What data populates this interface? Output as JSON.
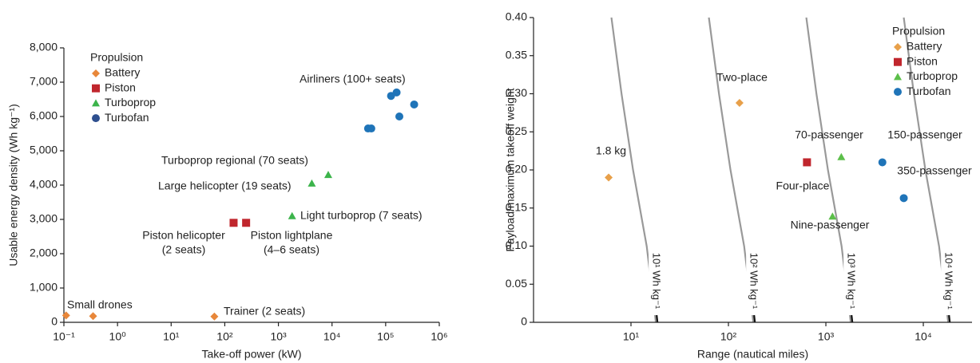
{
  "chart_data": [
    {
      "type": "scatter",
      "xscale": "log",
      "xlabel": "Take-off power (kW)",
      "ylabel": "Usable energy density (Wh kg⁻¹)",
      "xlim": [
        0.1,
        1000000
      ],
      "ylim": [
        0,
        8000
      ],
      "xticks": [
        {
          "value": 0.1,
          "label": "10⁻¹"
        },
        {
          "value": 1,
          "label": "10⁰"
        },
        {
          "value": 10,
          "label": "10¹"
        },
        {
          "value": 100,
          "label": "10²"
        },
        {
          "value": 1000,
          "label": "10³"
        },
        {
          "value": 10000,
          "label": "10⁴"
        },
        {
          "value": 100000,
          "label": "10⁵"
        },
        {
          "value": 1000000,
          "label": "10⁶"
        }
      ],
      "yticks": [
        0,
        {
          "value": 1000,
          "label": "1,000"
        },
        {
          "value": 2000,
          "label": "2,000"
        },
        {
          "value": 3000,
          "label": "3,000"
        },
        {
          "value": 4000,
          "label": "4,000"
        },
        {
          "value": 5000,
          "label": "5,000"
        },
        {
          "value": 6000,
          "label": "6,000"
        },
        {
          "value": 7000,
          "label": "7,000"
        },
        {
          "value": 8000,
          "label": "8,000"
        }
      ],
      "legend_title": "Propulsion",
      "legend": "upper left",
      "series": [
        {
          "name": "Battery",
          "color": "#e8873a",
          "marker": "diamond",
          "x": [
            0.11,
            0.35,
            64
          ],
          "values": [
            200,
            180,
            170
          ]
        },
        {
          "name": "Piston",
          "color": "#c0262d",
          "marker": "square",
          "x": [
            146,
            250
          ],
          "values": [
            2900,
            2900
          ]
        },
        {
          "name": "Turboprop",
          "color": "#3cb44b",
          "marker": "triangle",
          "x": [
            1800,
            4200,
            8500
          ],
          "values": [
            3100,
            4050,
            4300
          ]
        },
        {
          "name": "Turbofan",
          "color": "#1f74b8",
          "legend_color": "#2e4f8f",
          "marker": "circle",
          "x": [
            47000,
            54000,
            126000,
            160000,
            180000,
            340000
          ],
          "values": [
            5650,
            5650,
            6600,
            6700,
            6000,
            6350
          ]
        }
      ],
      "annotations": [
        "Airliners (100+ seats)",
        "Turboprop regional (70 seats)",
        "Large helicopter (19 seats)",
        "Light turboprop (7 seats)",
        "Piston helicopter",
        "(2 seats)",
        "Piston lightplane",
        "(4–6 seats)",
        "Small drones",
        "Trainer (2 seats)"
      ]
    },
    {
      "type": "scatter",
      "xscale": "log",
      "xlabel": "Range (nautical miles)",
      "ylabel": "Payload/maximum takeoff weight",
      "xlim": [
        1,
        31600
      ],
      "ylim": [
        0,
        0.4
      ],
      "xticks": [
        {
          "value": 10,
          "label": "10¹"
        },
        {
          "value": 100,
          "label": "10²"
        },
        {
          "value": 1000,
          "label": "10³"
        },
        {
          "value": 10000,
          "label": "10⁴"
        }
      ],
      "yticks": [
        0,
        0.05,
        {
          "value": 0.1,
          "label": "0.10"
        },
        0.15,
        {
          "value": 0.2,
          "label": "0.20"
        },
        0.25,
        {
          "value": 0.3,
          "label": "0.30"
        },
        0.35,
        {
          "value": 0.4,
          "label": "0.40"
        }
      ],
      "legend_title": "Propulsion",
      "legend": "upper right",
      "series": [
        {
          "name": "Battery",
          "color": "#e8a04a",
          "marker": "diamond",
          "x": [
            5.9,
            130
          ],
          "values": [
            0.19,
            0.288
          ]
        },
        {
          "name": "Piston",
          "color": "#c0262d",
          "marker": "square",
          "x": [
            640
          ],
          "values": [
            0.21
          ]
        },
        {
          "name": "Turboprop",
          "color": "#5cbf4a",
          "marker": "triangle",
          "x": [
            1170,
            1440
          ],
          "values": [
            0.139,
            0.217
          ]
        },
        {
          "name": "Turbofan",
          "color": "#1f74b8",
          "marker": "circle",
          "x": [
            3800,
            6300
          ],
          "values": [
            0.21,
            0.163
          ]
        }
      ],
      "lines": [
        {
          "name": "10¹ Wh kg⁻¹",
          "color": "#999999",
          "x": [
            6.3,
            8,
            10.5,
            14.5,
            18
          ],
          "values": [
            0.4,
            0.3,
            0.2,
            0.1,
            0
          ]
        },
        {
          "name": "10² Wh kg⁻¹",
          "color": "#999999",
          "x": [
            63,
            80,
            105,
            145,
            180
          ],
          "values": [
            0.4,
            0.3,
            0.2,
            0.1,
            0
          ]
        },
        {
          "name": "10³ Wh kg⁻¹",
          "color": "#999999",
          "x": [
            630,
            800,
            1050,
            1450,
            1800
          ],
          "values": [
            0.4,
            0.3,
            0.2,
            0.1,
            0
          ]
        },
        {
          "name": "10⁴ Wh kg⁻¹",
          "color": "#999999",
          "x": [
            6300,
            8000,
            10500,
            14500,
            18000
          ],
          "values": [
            0.4,
            0.3,
            0.2,
            0.1,
            0
          ]
        }
      ],
      "annotations": [
        "1.8 kg",
        "Two-place",
        "70-passenger",
        "150-passenger",
        "Four-place",
        "350-passenger",
        "Nine-passenger"
      ]
    }
  ]
}
